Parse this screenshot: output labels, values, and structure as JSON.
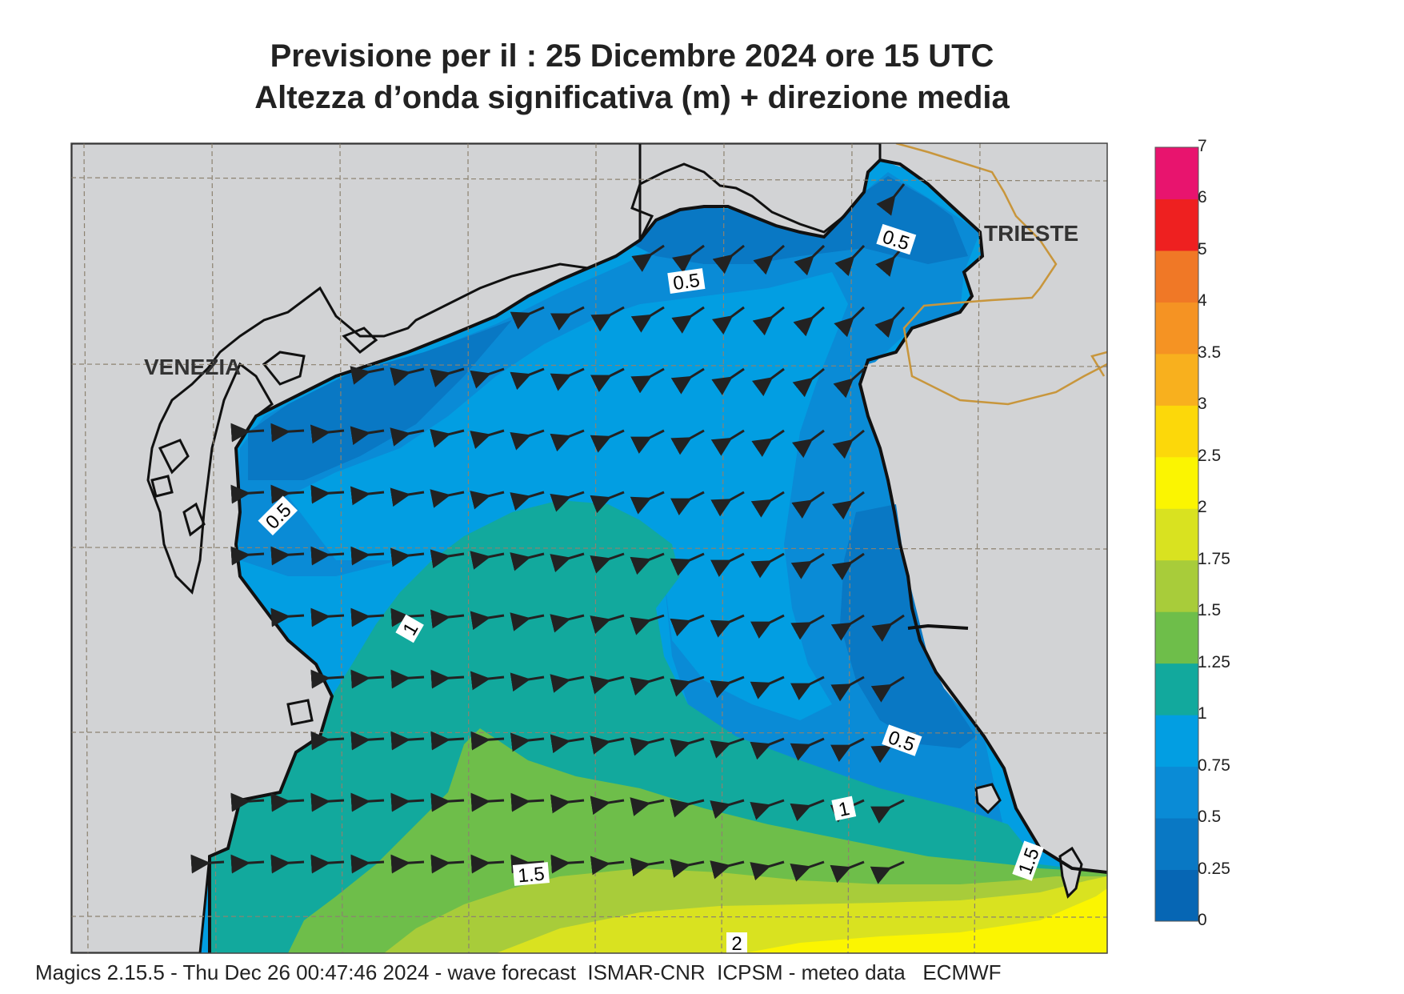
{
  "title": {
    "line1": "Previsione per il  :  25 Dicembre  2024   ore 15 UTC",
    "line2": "Altezza d’onda significativa (m) + direzione media"
  },
  "map": {
    "region": "Alto Adriatico",
    "places": [
      "VENEZIA",
      "TRIESTE"
    ],
    "contour_labels": [
      "0.5",
      "0.5",
      "0.5",
      "0.5",
      "1",
      "1",
      "1.5",
      "1.5",
      "2"
    ],
    "land_color": "#d2d3d5",
    "border_color": "#c8963c",
    "arrow_color": "#222222"
  },
  "legend": {
    "levels": [
      "7",
      "6",
      "5",
      "4",
      "3.5",
      "3",
      "2.5",
      "2",
      "1.75",
      "1.5",
      "1.25",
      "1",
      "0.75",
      "0.5",
      "0.25",
      "0"
    ],
    "colors": [
      "#e8146e",
      "#ee2020",
      "#f07826",
      "#f59323",
      "#f8b01e",
      "#fcd80a",
      "#fbf501",
      "#d9e220",
      "#a8cc3a",
      "#6ebe4a",
      "#12a99d",
      "#029ee2",
      "#0a8bd6",
      "#0978c4",
      "#0666b4"
    ]
  },
  "footer": "Magics 2.15.5 - Thu Dec 26 00:47:46 2024 - wave forecast  ISMAR-CNR  ICPSM - meteo data   ECMWF"
}
